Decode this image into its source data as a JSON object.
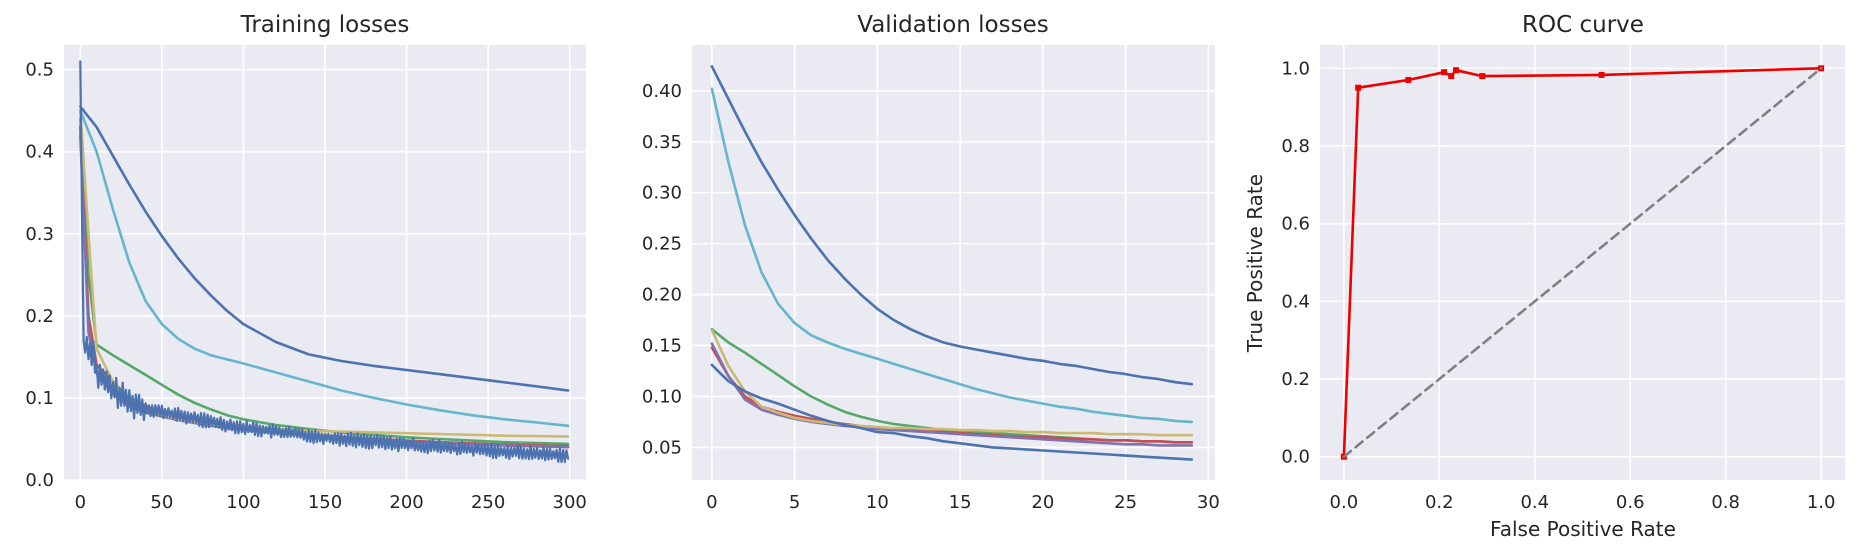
{
  "colors": {
    "axes_bg": "#eaeaf2",
    "grid": "#ffffff",
    "palette": [
      "#4c72b0",
      "#55a868",
      "#c44e52",
      "#8172b2",
      "#ccb974",
      "#64b5cd"
    ],
    "roc": "#ee0000",
    "diagonal": "#808080"
  },
  "chart_data": [
    {
      "type": "line",
      "title": "Training losses",
      "xlabel": "",
      "ylabel": "",
      "xlim": [
        -10,
        310
      ],
      "ylim": [
        0,
        0.53
      ],
      "xticks": [
        0,
        50,
        100,
        150,
        200,
        250,
        300
      ],
      "yticks": [
        0.0,
        0.1,
        0.2,
        0.3,
        0.4,
        0.5
      ],
      "xtick_labels": [
        "0",
        "50",
        "100",
        "150",
        "200",
        "250",
        "300"
      ],
      "ytick_labels": [
        "0.0",
        "0.1",
        "0.2",
        "0.3",
        "0.4",
        "0.5"
      ],
      "grid": true,
      "series": [
        {
          "color": "#4c72b0",
          "x": [
            0,
            10,
            20,
            30,
            40,
            50,
            60,
            70,
            80,
            90,
            100,
            120,
            140,
            160,
            180,
            200,
            220,
            240,
            260,
            280,
            299
          ],
          "values": [
            0.455,
            0.43,
            0.395,
            0.36,
            0.327,
            0.297,
            0.27,
            0.246,
            0.225,
            0.206,
            0.19,
            0.168,
            0.153,
            0.145,
            0.139,
            0.134,
            0.129,
            0.124,
            0.119,
            0.114,
            0.109
          ]
        },
        {
          "color": "#64b5cd",
          "x": [
            0,
            10,
            20,
            30,
            40,
            50,
            60,
            70,
            80,
            100,
            120,
            140,
            160,
            180,
            200,
            220,
            240,
            260,
            280,
            299
          ],
          "values": [
            0.45,
            0.4,
            0.33,
            0.265,
            0.218,
            0.19,
            0.172,
            0.16,
            0.152,
            0.142,
            0.131,
            0.12,
            0.109,
            0.1,
            0.092,
            0.085,
            0.079,
            0.074,
            0.07,
            0.066
          ]
        },
        {
          "color": "#55a868",
          "x": [
            0,
            5,
            10,
            20,
            30,
            40,
            50,
            60,
            70,
            80,
            90,
            100,
            120,
            140,
            160,
            180,
            200,
            220,
            240,
            260,
            280,
            299
          ],
          "values": [
            0.44,
            0.25,
            0.165,
            0.152,
            0.14,
            0.128,
            0.116,
            0.104,
            0.094,
            0.086,
            0.079,
            0.074,
            0.067,
            0.062,
            0.058,
            0.055,
            0.052,
            0.05,
            0.048,
            0.046,
            0.045,
            0.044
          ]
        },
        {
          "color": "#c44e52",
          "x": [
            0,
            5,
            10,
            20,
            30,
            40,
            60,
            80,
            100,
            140,
            180,
            220,
            260,
            299
          ],
          "values": [
            0.43,
            0.2,
            0.14,
            0.12,
            0.1,
            0.09,
            0.075,
            0.068,
            0.062,
            0.055,
            0.05,
            0.046,
            0.043,
            0.041
          ]
        },
        {
          "color": "#8172b2",
          "x": [
            0,
            5,
            10,
            20,
            30,
            40,
            60,
            80,
            100,
            140,
            180,
            220,
            260,
            299
          ],
          "values": [
            0.42,
            0.18,
            0.13,
            0.105,
            0.09,
            0.082,
            0.073,
            0.066,
            0.061,
            0.054,
            0.049,
            0.045,
            0.042,
            0.04
          ]
        },
        {
          "color": "#ccb974",
          "x": [
            0,
            5,
            10,
            20,
            30,
            40,
            60,
            80,
            100,
            140,
            180,
            220,
            260,
            299
          ],
          "values": [
            0.45,
            0.3,
            0.16,
            0.12,
            0.1,
            0.085,
            0.074,
            0.068,
            0.064,
            0.06,
            0.058,
            0.056,
            0.054,
            0.053
          ]
        },
        {
          "color": "#4c72b0",
          "noisy": true,
          "x": [
            0,
            1,
            2,
            3,
            5,
            8,
            10,
            15,
            20,
            30,
            40,
            50,
            75,
            100,
            150,
            200,
            250,
            299
          ],
          "values": [
            0.51,
            0.33,
            0.17,
            0.165,
            0.16,
            0.155,
            0.13,
            0.12,
            0.11,
            0.095,
            0.088,
            0.083,
            0.073,
            0.064,
            0.052,
            0.043,
            0.036,
            0.03
          ]
        }
      ]
    },
    {
      "type": "line",
      "title": "Validation losses",
      "xlabel": "",
      "ylabel": "",
      "xlim": [
        -1.2,
        30.4
      ],
      "ylim": [
        0.018,
        0.445
      ],
      "xticks": [
        0,
        5,
        10,
        15,
        20,
        25,
        30
      ],
      "yticks": [
        0.05,
        0.1,
        0.15,
        0.2,
        0.25,
        0.3,
        0.35,
        0.4
      ],
      "xtick_labels": [
        "0",
        "5",
        "10",
        "15",
        "20",
        "25",
        "30"
      ],
      "ytick_labels": [
        "0.05",
        "0.10",
        "0.15",
        "0.20",
        "0.25",
        "0.30",
        "0.35",
        "0.40"
      ],
      "grid": true,
      "x": [
        0,
        1,
        2,
        3,
        4,
        5,
        6,
        7,
        8,
        9,
        10,
        11,
        12,
        13,
        14,
        15,
        16,
        17,
        18,
        19,
        20,
        21,
        22,
        23,
        24,
        25,
        26,
        27,
        28,
        29
      ],
      "series": [
        {
          "color": "#4c72b0",
          "values": [
            0.424,
            0.392,
            0.36,
            0.33,
            0.303,
            0.278,
            0.255,
            0.234,
            0.216,
            0.2,
            0.186,
            0.175,
            0.166,
            0.159,
            0.153,
            0.149,
            0.146,
            0.143,
            0.14,
            0.137,
            0.135,
            0.132,
            0.13,
            0.127,
            0.124,
            0.122,
            0.119,
            0.117,
            0.114,
            0.112
          ]
        },
        {
          "color": "#64b5cd",
          "values": [
            0.402,
            0.33,
            0.268,
            0.222,
            0.191,
            0.172,
            0.16,
            0.153,
            0.147,
            0.142,
            0.137,
            0.132,
            0.127,
            0.122,
            0.117,
            0.112,
            0.107,
            0.103,
            0.099,
            0.096,
            0.093,
            0.09,
            0.088,
            0.085,
            0.083,
            0.081,
            0.079,
            0.078,
            0.076,
            0.075
          ]
        },
        {
          "color": "#55a868",
          "values": [
            0.166,
            0.153,
            0.143,
            0.132,
            0.121,
            0.11,
            0.1,
            0.092,
            0.085,
            0.08,
            0.076,
            0.073,
            0.071,
            0.069,
            0.067,
            0.066,
            0.065,
            0.064,
            0.063,
            0.062,
            0.061,
            0.06,
            0.059,
            0.058,
            0.057,
            0.057,
            0.056,
            0.056,
            0.055,
            0.055
          ]
        },
        {
          "color": "#c44e52",
          "values": [
            0.148,
            0.12,
            0.1,
            0.09,
            0.085,
            0.081,
            0.078,
            0.075,
            0.073,
            0.071,
            0.07,
            0.068,
            0.067,
            0.066,
            0.065,
            0.064,
            0.063,
            0.062,
            0.061,
            0.06,
            0.06,
            0.059,
            0.058,
            0.058,
            0.057,
            0.057,
            0.056,
            0.056,
            0.055,
            0.055
          ]
        },
        {
          "color": "#8172b2",
          "values": [
            0.152,
            0.12,
            0.097,
            0.087,
            0.082,
            0.078,
            0.075,
            0.073,
            0.071,
            0.07,
            0.068,
            0.067,
            0.066,
            0.065,
            0.064,
            0.063,
            0.062,
            0.061,
            0.06,
            0.059,
            0.058,
            0.057,
            0.056,
            0.055,
            0.054,
            0.053,
            0.053,
            0.052,
            0.052,
            0.052
          ]
        },
        {
          "color": "#ccb974",
          "values": [
            0.165,
            0.13,
            0.105,
            0.09,
            0.084,
            0.079,
            0.076,
            0.074,
            0.072,
            0.071,
            0.07,
            0.069,
            0.069,
            0.068,
            0.068,
            0.067,
            0.067,
            0.066,
            0.066,
            0.065,
            0.065,
            0.064,
            0.064,
            0.064,
            0.063,
            0.063,
            0.063,
            0.062,
            0.062,
            0.062
          ]
        },
        {
          "color": "#4c72b0",
          "values": [
            0.131,
            0.115,
            0.105,
            0.098,
            0.093,
            0.087,
            0.081,
            0.076,
            0.072,
            0.069,
            0.065,
            0.064,
            0.061,
            0.059,
            0.056,
            0.054,
            0.052,
            0.05,
            0.049,
            0.048,
            0.047,
            0.046,
            0.045,
            0.044,
            0.043,
            0.042,
            0.041,
            0.04,
            0.039,
            0.038
          ]
        }
      ]
    },
    {
      "type": "line",
      "title": "ROC curve",
      "xlabel": "False Positive Rate",
      "ylabel": "True Positive Rate",
      "xlim": [
        -0.05,
        1.05
      ],
      "ylim": [
        -0.06,
        1.06
      ],
      "xticks": [
        0.0,
        0.2,
        0.4,
        0.6,
        0.8,
        1.0
      ],
      "yticks": [
        0.0,
        0.2,
        0.4,
        0.6,
        0.8,
        1.0
      ],
      "xtick_labels": [
        "0.0",
        "0.2",
        "0.4",
        "0.6",
        "0.8",
        "1.0"
      ],
      "ytick_labels": [
        "0.0",
        "0.2",
        "0.4",
        "0.6",
        "0.8",
        "1.0"
      ],
      "grid": true,
      "series": [
        {
          "color": "#ee0000",
          "markers": true,
          "x": [
            0.0,
            0.03,
            0.135,
            0.21,
            0.225,
            0.235,
            0.29,
            0.54,
            1.0
          ],
          "values": [
            0.0,
            0.95,
            0.97,
            0.99,
            0.98,
            0.995,
            0.98,
            0.983,
            1.0
          ]
        },
        {
          "color": "#808080",
          "dashed": true,
          "x": [
            0,
            1
          ],
          "values": [
            0,
            1
          ]
        }
      ]
    }
  ]
}
